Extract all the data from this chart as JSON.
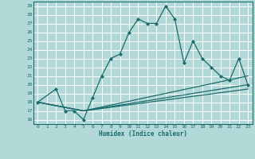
{
  "title": "",
  "xlabel": "Humidex (Indice chaleur)",
  "bg_color": "#b2d8d8",
  "grid_color": "#ffffff",
  "line_color": "#1a6b6b",
  "xlim": [
    -0.5,
    23.5
  ],
  "ylim": [
    15.5,
    29.5
  ],
  "xticks": [
    0,
    1,
    2,
    3,
    4,
    5,
    6,
    7,
    8,
    9,
    10,
    11,
    12,
    13,
    14,
    15,
    16,
    17,
    18,
    19,
    20,
    21,
    22,
    23
  ],
  "yticks": [
    16,
    17,
    18,
    19,
    20,
    21,
    22,
    23,
    24,
    25,
    26,
    27,
    28,
    29
  ],
  "line1_x": [
    0,
    2,
    3,
    4,
    5,
    6,
    7,
    8,
    9,
    10,
    11,
    12,
    13,
    14,
    15,
    16,
    17,
    18,
    19,
    20,
    21,
    22,
    23
  ],
  "line1_y": [
    18,
    19.5,
    17,
    17,
    16,
    18.5,
    21,
    23,
    23.5,
    26,
    27.5,
    27,
    27,
    29,
    27.5,
    22.5,
    25,
    23,
    22,
    21,
    20.5,
    23,
    20
  ],
  "line2_x": [
    0,
    5,
    23
  ],
  "line2_y": [
    18,
    17,
    20
  ],
  "line3_x": [
    0,
    5,
    23
  ],
  "line3_y": [
    18,
    17,
    19.5
  ],
  "line4_x": [
    0,
    5,
    23
  ],
  "line4_y": [
    18,
    17,
    21
  ]
}
